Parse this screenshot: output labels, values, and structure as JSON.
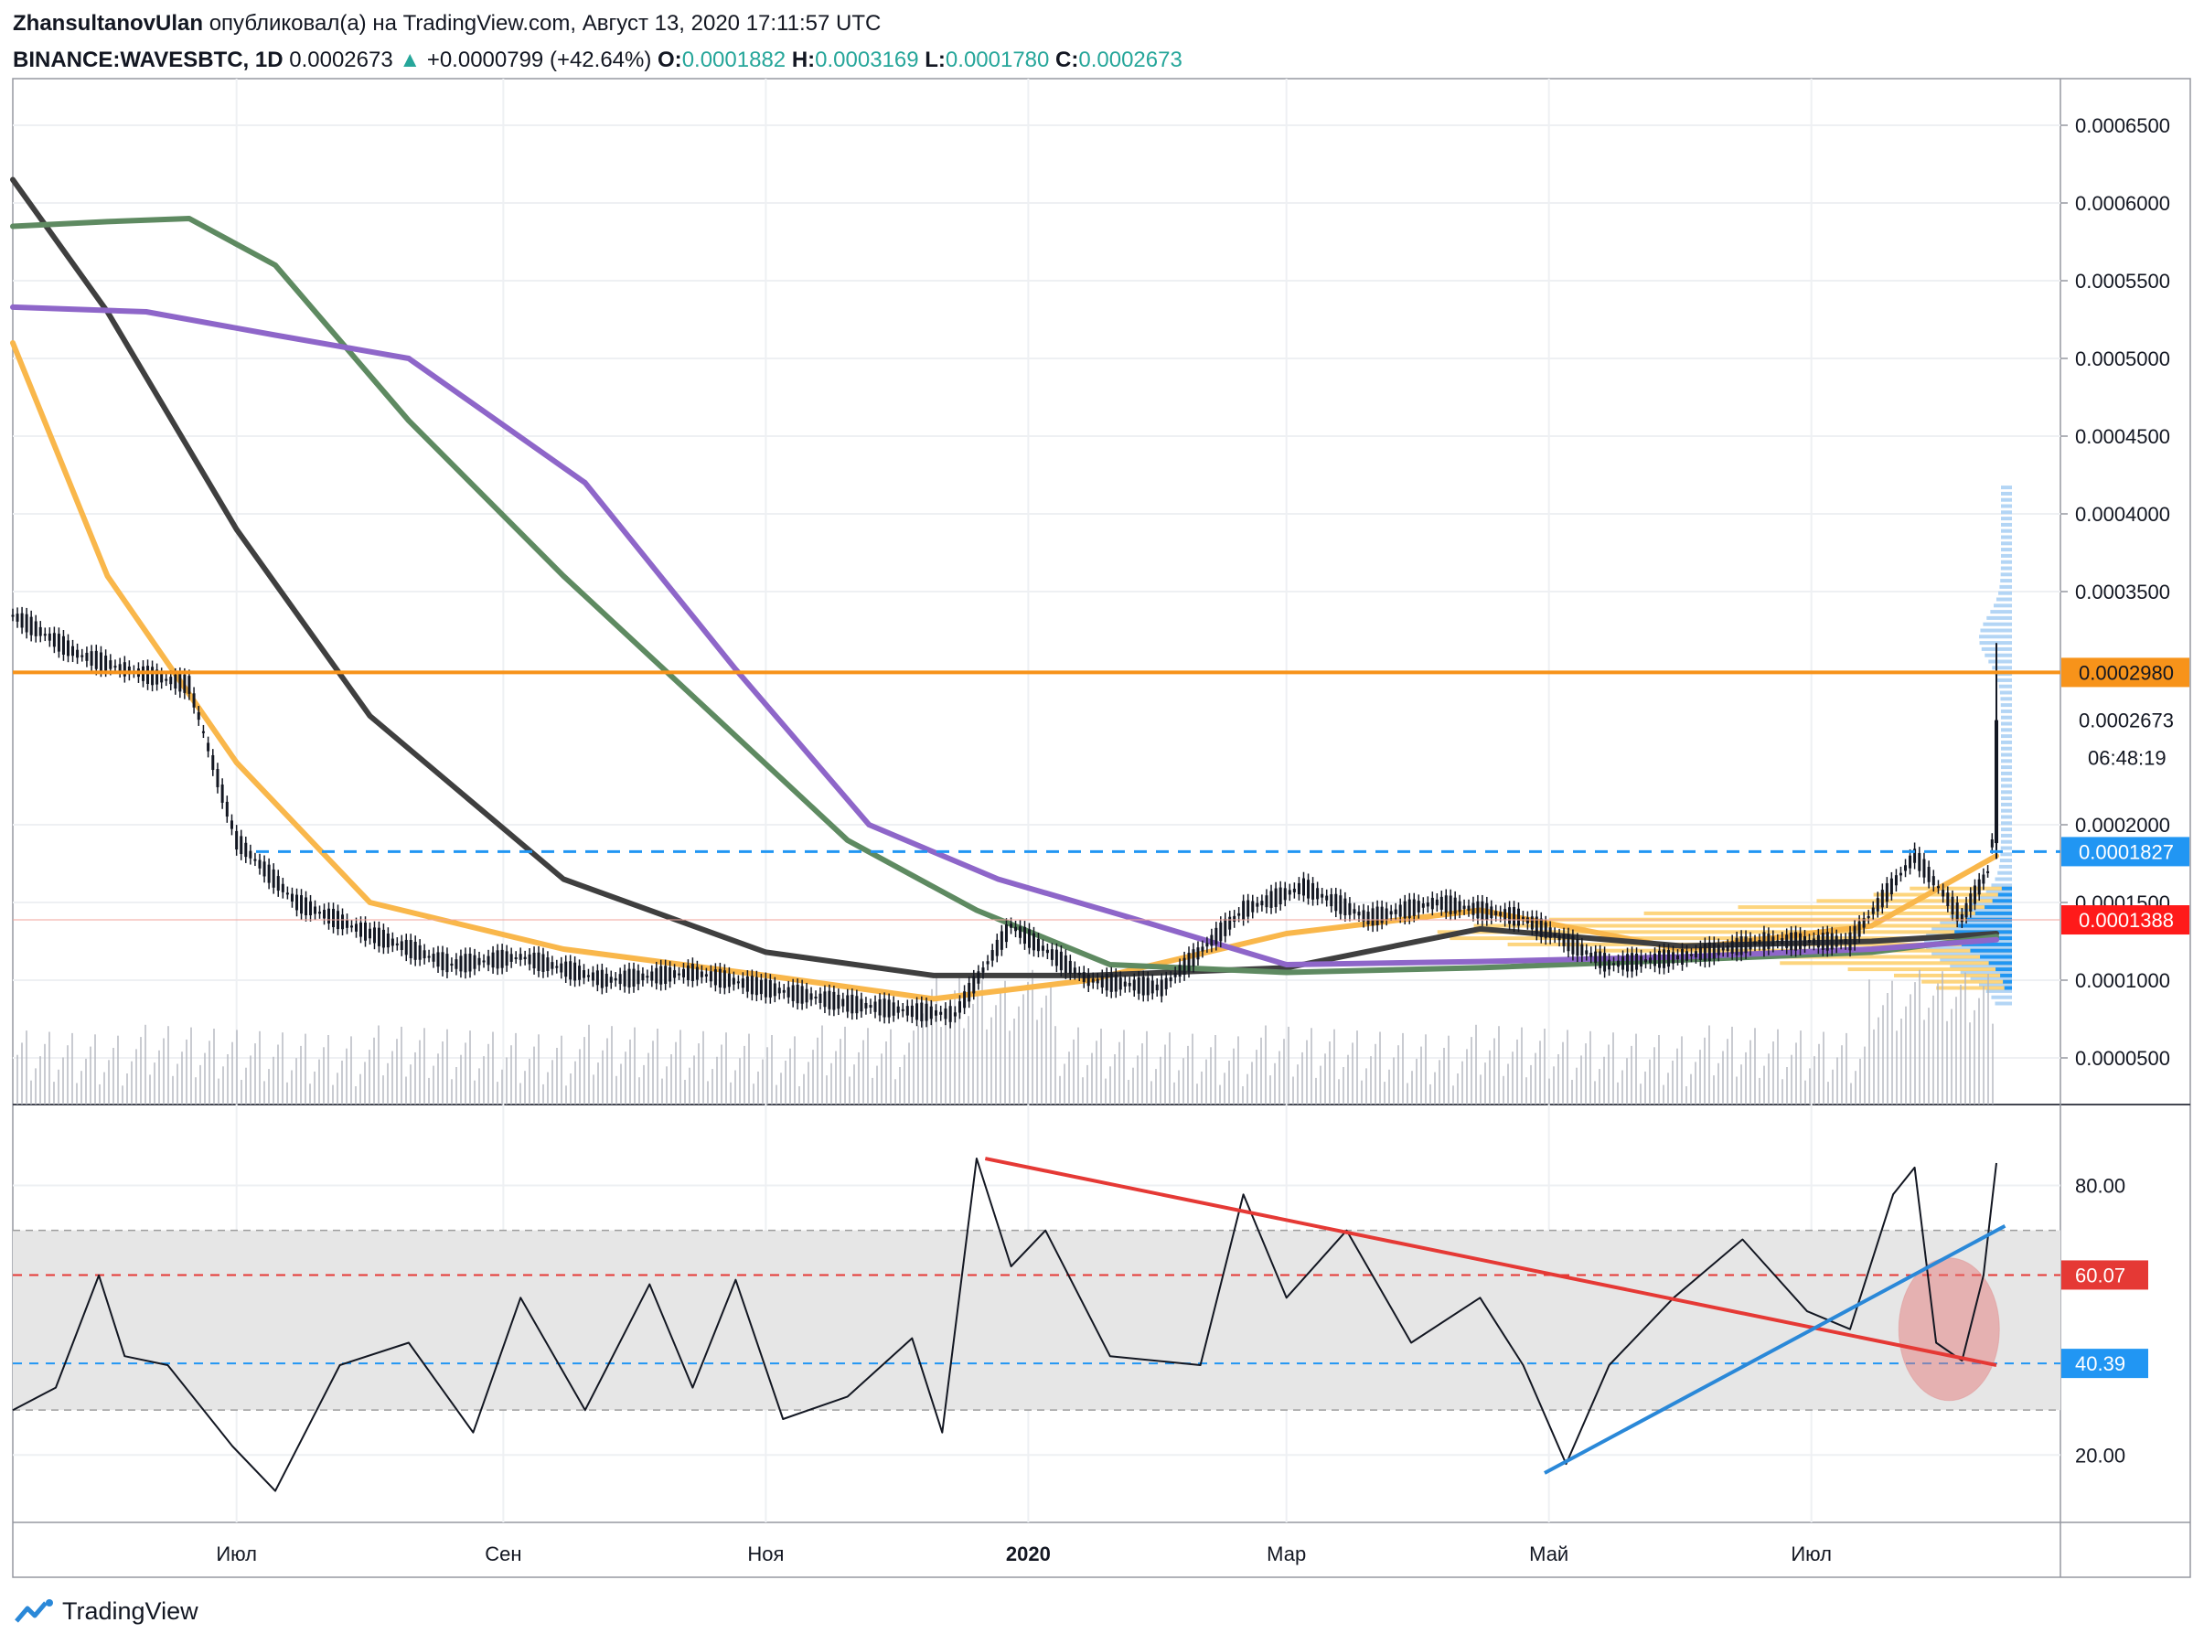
{
  "header": {
    "author": "ZhansultanovUlan",
    "published_text": "опубликовал(а) на TradingView.com, Август 13, 2020 17:11:57 UTC",
    "symbol": "BINANCE:WAVESBTC, 1D",
    "last_price": "0.0002673",
    "change": "+0.0000799 (+42.64%)",
    "open_key": "O:",
    "open_val": "0.0001882",
    "high_key": "H:",
    "high_val": "0.0003169",
    "low_key": "L:",
    "low_val": "0.0001780",
    "close_key": "C:",
    "close_val": "0.0002673"
  },
  "footer": {
    "brand": "TradingView"
  },
  "colors": {
    "resistance_line": "#f7931a",
    "support_dashed": "#2196f3",
    "rsi_trend_down": "#e53935",
    "rsi_trend_up": "#2a88d8",
    "ema_200": "#5e8a61",
    "ema_100": "#3f3f3f",
    "ema_300": "#8e66c9",
    "ema_50": "#f9b74b",
    "price_up": "#131722"
  },
  "chart_data": [
    {
      "type": "line",
      "title": "",
      "xlabel": "",
      "ylabel": "",
      "x_tick_labels": [
        "Июл",
        "Сен",
        "Ноя",
        "2020",
        "Мар",
        "Май",
        "Июл"
      ],
      "y_tick_labels": [
        "0.0006500",
        "0.0006000",
        "0.0005500",
        "0.0005000",
        "0.0004500",
        "0.0004000",
        "0.0003500",
        "0.0002000",
        "0.0001500",
        "0.0001000",
        "0.0000500"
      ],
      "ylim": [
        2e-05,
        0.00068
      ],
      "x_range": [
        "2019-05-10",
        "2020-08-13"
      ],
      "horizontal_levels": [
        {
          "value": 0.000298,
          "label": "0.0002980",
          "style": "solid"
        },
        {
          "value": 0.0001827,
          "label": "0.0001827",
          "style": "dashed"
        },
        {
          "value": 0.0001388,
          "label": "0.0001388",
          "style": "thin"
        }
      ],
      "price_label_current": "0.0002673",
      "countdown_label": "06:48:19",
      "close_series": {
        "x": [
          "2019-05-10",
          "2019-05-25",
          "2019-06-05",
          "2019-06-20",
          "2019-07-01",
          "2019-07-15",
          "2019-08-01",
          "2019-08-20",
          "2019-09-05",
          "2019-09-25",
          "2019-10-15",
          "2019-11-01",
          "2019-11-20",
          "2019-12-05",
          "2019-12-15",
          "2019-12-28",
          "2020-01-15",
          "2020-02-01",
          "2020-02-20",
          "2020-03-05",
          "2020-03-20",
          "2020-04-05",
          "2020-04-25",
          "2020-05-15",
          "2020-06-01",
          "2020-06-20",
          "2020-07-10",
          "2020-07-25",
          "2020-08-05",
          "2020-08-11",
          "2020-08-12",
          "2020-08-13"
        ],
        "values": [
          0.000335,
          0.00031,
          0.0003,
          0.00029,
          0.00019,
          0.00015,
          0.00013,
          0.00011,
          0.000115,
          0.0001,
          0.000105,
          9.5e-05,
          8.5e-05,
          8e-05,
          7.8e-05,
          0.000135,
          0.0001,
          9.5e-05,
          0.000145,
          0.00016,
          0.00014,
          0.00015,
          0.00014,
          0.00011,
          0.000115,
          0.000125,
          0.000125,
          0.00018,
          0.00014,
          0.00017,
          0.000188,
          0.000267
        ]
      },
      "series": [
        {
          "name": "",
          "color": "#f9b74b",
          "x": [
            "2019-05-10",
            "2019-06-01",
            "2019-07-01",
            "2019-08-01",
            "2019-09-15",
            "2019-11-01",
            "2019-12-10",
            "2020-01-15",
            "2020-03-01",
            "2020-04-15",
            "2020-06-01",
            "2020-07-15",
            "2020-08-13"
          ],
          "values": [
            0.00051,
            0.00036,
            0.00024,
            0.00015,
            0.00012,
            0.000103,
            8.8e-05,
            0.0001,
            0.00013,
            0.000145,
            0.00012,
            0.000135,
            0.00018
          ]
        },
        {
          "name": "",
          "color": "#3f3f3f",
          "x": [
            "2019-05-10",
            "2019-06-01",
            "2019-07-01",
            "2019-08-01",
            "2019-09-15",
            "2019-11-01",
            "2019-12-10",
            "2020-01-15",
            "2020-03-01",
            "2020-04-15",
            "2020-06-01",
            "2020-07-15",
            "2020-08-13"
          ],
          "values": [
            0.000615,
            0.00053,
            0.00039,
            0.00027,
            0.000165,
            0.000118,
            0.000103,
            0.000103,
            0.000108,
            0.000133,
            0.000122,
            0.000125,
            0.00013
          ]
        },
        {
          "name": "",
          "color": "#5e8a61",
          "x": [
            "2019-05-10",
            "2019-06-01",
            "2019-06-20",
            "2019-07-10",
            "2019-08-10",
            "2019-09-15",
            "2019-10-20",
            "2019-11-20",
            "2019-12-20",
            "2020-01-20",
            "2020-03-01",
            "2020-04-15",
            "2020-06-01",
            "2020-07-15",
            "2020-08-13"
          ],
          "values": [
            0.000585,
            0.000588,
            0.00059,
            0.00056,
            0.00046,
            0.00036,
            0.00027,
            0.00019,
            0.000145,
            0.00011,
            0.000105,
            0.000108,
            0.000113,
            0.000118,
            0.000128
          ]
        },
        {
          "name": "",
          "color": "#8e66c9",
          "x": [
            "2019-05-10",
            "2019-06-10",
            "2019-07-10",
            "2019-08-10",
            "2019-09-20",
            "2019-10-25",
            "2019-11-25",
            "2019-12-25",
            "2020-01-25",
            "2020-03-01",
            "2020-04-15",
            "2020-06-01",
            "2020-07-15",
            "2020-08-13"
          ],
          "values": [
            0.000533,
            0.00053,
            0.000515,
            0.0005,
            0.00042,
            0.0003,
            0.0002,
            0.000165,
            0.00014,
            0.00011,
            0.000112,
            0.000115,
            0.00012,
            0.000126
          ]
        }
      ]
    },
    {
      "type": "line",
      "title": "",
      "ylim": [
        5,
        97
      ],
      "y_tick_labels": [
        "80.00",
        "20.00"
      ],
      "band": [
        30,
        70
      ],
      "levels": [
        {
          "value": 60.07,
          "label": "60.07",
          "color": "#e53935"
        },
        {
          "value": 40.39,
          "label": "40.39",
          "color": "#2196f3"
        }
      ],
      "series": [
        {
          "name": "",
          "x": [
            "2019-05-10",
            "2019-05-20",
            "2019-05-30",
            "2019-06-05",
            "2019-06-15",
            "2019-06-30",
            "2019-07-10",
            "2019-07-25",
            "2019-08-10",
            "2019-08-25",
            "2019-09-05",
            "2019-09-20",
            "2019-10-05",
            "2019-10-15",
            "2019-10-25",
            "2019-11-05",
            "2019-11-20",
            "2019-12-05",
            "2019-12-12",
            "2019-12-20",
            "2019-12-28",
            "2020-01-05",
            "2020-01-20",
            "2020-02-10",
            "2020-02-20",
            "2020-03-01",
            "2020-03-15",
            "2020-03-30",
            "2020-04-15",
            "2020-04-25",
            "2020-05-05",
            "2020-05-15",
            "2020-05-30",
            "2020-06-15",
            "2020-06-30",
            "2020-07-10",
            "2020-07-20",
            "2020-07-25",
            "2020-07-30",
            "2020-08-05",
            "2020-08-10",
            "2020-08-13"
          ],
          "values": [
            30,
            35,
            60,
            42,
            40,
            22,
            12,
            40,
            45,
            25,
            55,
            30,
            58,
            35,
            59,
            28,
            33,
            46,
            25,
            86,
            62,
            70,
            42,
            40,
            78,
            55,
            70,
            45,
            55,
            40,
            18,
            40,
            55,
            68,
            52,
            48,
            78,
            84,
            45,
            41,
            60,
            85
          ]
        }
      ],
      "trendlines": [
        {
          "color": "#e53935",
          "from": {
            "x": "2019-12-22",
            "y": 86
          },
          "to": {
            "x": "2020-08-13",
            "y": 40
          }
        },
        {
          "color": "#2a88d8",
          "from": {
            "x": "2020-04-30",
            "y": 16
          },
          "to": {
            "x": "2020-08-15",
            "y": 71
          }
        }
      ],
      "highlight_circle": {
        "x": "2020-08-02",
        "y": 48
      }
    }
  ]
}
